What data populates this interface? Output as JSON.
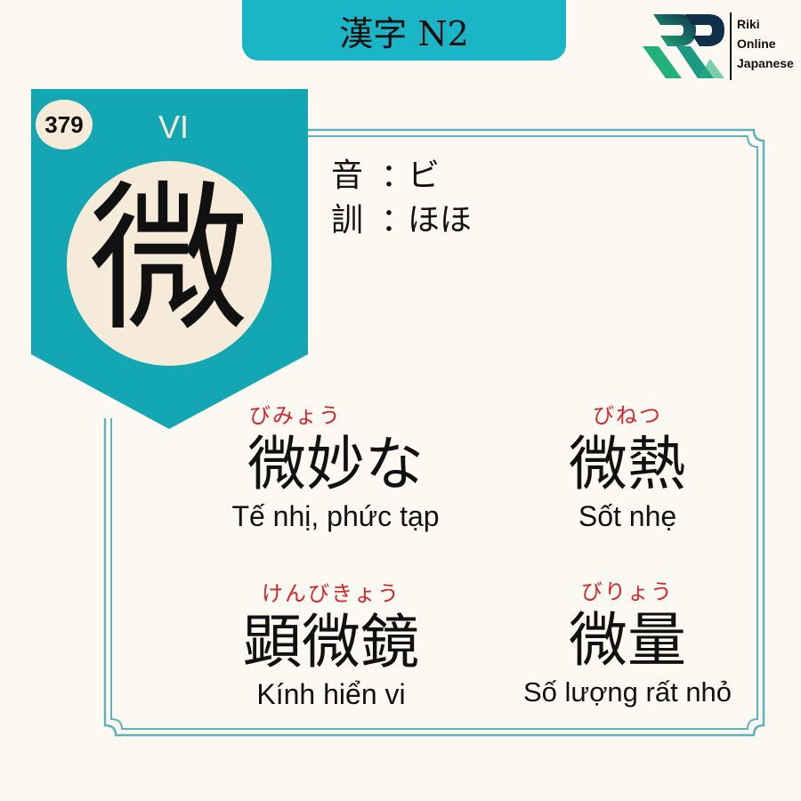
{
  "header": {
    "title": "漢字 N2"
  },
  "logo": {
    "line1": "Riki",
    "line2": "Online",
    "line3": "Japanese"
  },
  "kanji": {
    "number": "379",
    "han_viet": "VI",
    "character": "微",
    "on_label": "音",
    "on_reading": "ビ",
    "kun_label": "訓",
    "kun_reading": "ほほ",
    "separator": "："
  },
  "vocab": [
    {
      "furigana": "びみょう",
      "word": "微妙な",
      "meaning": "Tế nhị, phức tạp"
    },
    {
      "furigana": "びねつ",
      "word": "微熱",
      "meaning": "Sốt nhẹ"
    },
    {
      "furigana": "けんびきょう",
      "word": "顕微鏡",
      "meaning": "Kính hiển vi"
    },
    {
      "furigana": "びりょう",
      "word": "微量",
      "meaning": "Số lượng rất nhỏ"
    }
  ],
  "colors": {
    "teal": "#1ab5c6",
    "tag_teal": "#12a7b2",
    "cream": "#f6ead8",
    "background": "#fcf9f2",
    "furigana_red": "#d8232a",
    "frame": "#5fb3b8"
  }
}
